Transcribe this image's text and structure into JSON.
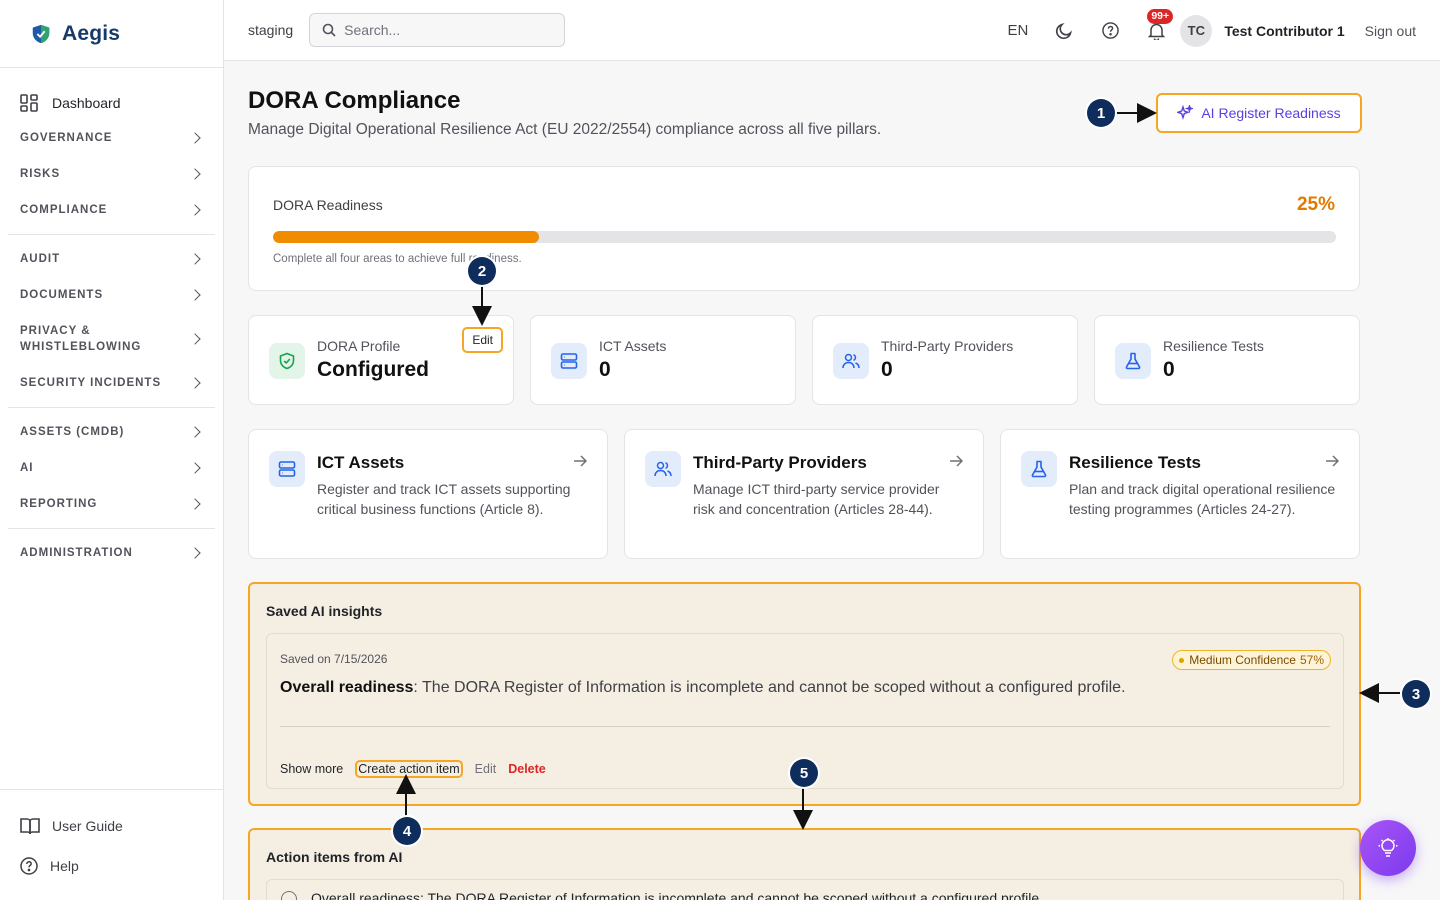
{
  "brand": {
    "name": "Aegis"
  },
  "sidebar": {
    "dashboard": "Dashboard",
    "items": [
      {
        "label": "GOVERNANCE"
      },
      {
        "label": "RISKS"
      },
      {
        "label": "COMPLIANCE"
      },
      {
        "label": "AUDIT"
      },
      {
        "label": "DOCUMENTS"
      },
      {
        "label": "PRIVACY & WHISTLEBLOWING"
      },
      {
        "label": "SECURITY INCIDENTS"
      },
      {
        "label": "ASSETS (CMDB)"
      },
      {
        "label": "AI"
      },
      {
        "label": "REPORTING"
      },
      {
        "label": "ADMINISTRATION"
      }
    ],
    "user_guide": "User Guide",
    "help": "Help"
  },
  "topbar": {
    "environment": "staging",
    "search_placeholder": "Search...",
    "language": "EN",
    "notifications_badge": "99+",
    "avatar_initials": "TC",
    "user_name": "Test Contributor 1",
    "sign_out": "Sign out"
  },
  "page": {
    "title": "DORA Compliance",
    "subtitle": "Manage Digital Operational Resilience Act (EU 2022/2554) compliance across all five pillars.",
    "ai_button": "AI Register Readiness"
  },
  "readiness": {
    "label": "DORA Readiness",
    "percent_text": "25%",
    "percent": 25,
    "hint": "Complete all four areas to achieve full readiness."
  },
  "stats": [
    {
      "label": "DORA Profile",
      "value": "Configured",
      "icon": "shield-check-icon"
    },
    {
      "label": "ICT Assets",
      "value": "0",
      "icon": "server-icon"
    },
    {
      "label": "Third-Party Providers",
      "value": "0",
      "icon": "users-icon"
    },
    {
      "label": "Resilience Tests",
      "value": "0",
      "icon": "flask-icon"
    }
  ],
  "edit_label": "Edit",
  "cards": [
    {
      "title": "ICT Assets",
      "description": "Register and track ICT assets supporting critical business functions (Article 8)."
    },
    {
      "title": "Third-Party Providers",
      "description": "Manage ICT third-party service provider risk and concentration (Articles 28-44)."
    },
    {
      "title": "Resilience Tests",
      "description": "Plan and track digital operational resilience testing programmes (Articles 24-27)."
    }
  ],
  "insights": {
    "heading": "Saved AI insights",
    "saved_on": "Saved on 7/15/2026",
    "confidence_label": "Medium Confidence",
    "confidence_pct": "57%",
    "text_bold": "Overall readiness",
    "text": ": The DORA Register of Information is incomplete and cannot be scoped without a configured profile.",
    "actions": {
      "show_more": "Show more",
      "create_action": "Create action item",
      "edit": "Edit",
      "delete": "Delete"
    }
  },
  "action_items": {
    "heading": "Action items from AI",
    "items": [
      {
        "text": "Overall readiness: The DORA Register of Information is incomplete and cannot be scoped without a configured profile."
      }
    ]
  },
  "callouts": [
    "1",
    "2",
    "3",
    "4",
    "5"
  ],
  "colors": {
    "accent": "#f6a623",
    "brand": "#173a6b",
    "ai_purple": "#5b3fe0",
    "progress": "#f08c00",
    "callout": "#0f2d5c"
  }
}
